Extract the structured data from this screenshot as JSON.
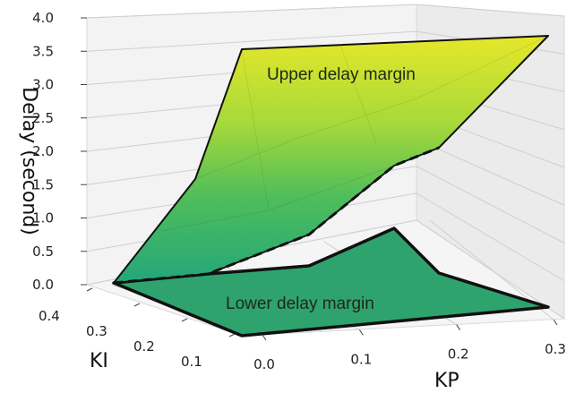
{
  "chart_data": {
    "type": "surface3d",
    "zlabel": "Delay (second)",
    "xlabel": "KP",
    "ylabel": "KI",
    "z_ticks": [
      "0.0",
      "0.5",
      "1.0",
      "1.5",
      "2.0",
      "2.5",
      "3.0",
      "3.5",
      "4.0"
    ],
    "kp_ticks": [
      "0.0",
      "0.1",
      "0.2",
      "0.3"
    ],
    "ki_ticks": [
      "0.1",
      "0.2",
      "0.3",
      "0.4"
    ],
    "zlim": [
      0,
      4
    ],
    "kplim": [
      0,
      0.3
    ],
    "kilim": [
      0.1,
      0.4
    ],
    "grid": true,
    "surfaces": [
      {
        "name": "Upper delay margin",
        "color_low": "#21a57a",
        "color_high": "#e3e62a",
        "points": [
          {
            "kp": 0.0,
            "ki": 0.4,
            "delay": 0.0
          },
          {
            "kp": 0.0,
            "ki": 0.1,
            "delay": 0.0
          },
          {
            "kp": 0.3,
            "ki": 0.1,
            "delay": 0.0
          },
          {
            "kp": 0.3,
            "ki": 0.4,
            "delay": 3.8
          },
          {
            "kp": 0.0,
            "ki": 0.1,
            "delay": 3.6
          }
        ]
      },
      {
        "name": "Lower delay margin",
        "color": "#2fa36e",
        "points": [
          {
            "kp": 0.0,
            "ki": 0.4,
            "delay": 0.0
          },
          {
            "kp": 0.0,
            "ki": 0.1,
            "delay": 0.0
          },
          {
            "kp": 0.3,
            "ki": 0.1,
            "delay": 0.0
          },
          {
            "kp": 0.15,
            "ki": 0.25,
            "delay": 1.0
          }
        ]
      }
    ],
    "annotations": [
      "Upper delay margin",
      "Lower delay margin"
    ]
  }
}
